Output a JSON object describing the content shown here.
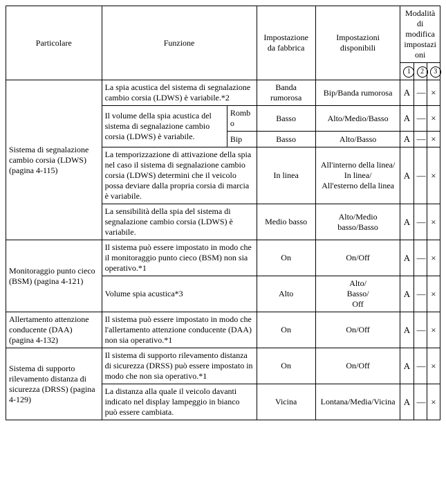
{
  "header": {
    "particolare": "Particolare",
    "funzione": "Funzione",
    "fabbrica": "Impostazione da fabbrica",
    "disponibili": "Impostazioni disponibili",
    "modalita": "Modalità di modifica impostazioni",
    "mod1": "1",
    "mod2": "2",
    "mod3": "3"
  },
  "groups": [
    {
      "label": "Sistema di segnalazione cambio corsia (LDWS) (pagina 4-115)",
      "rows": [
        {
          "func": "La spia acustica del sistema di segnalazione cambio corsia (LDWS) è variabile.*2",
          "sub": null,
          "fab": "Banda rumorosa",
          "disp": "Bip/Banda rumorosa",
          "m1": "A",
          "m2": "—",
          "m3": "×",
          "funcSpan": 1,
          "subMerged": true
        },
        {
          "func": "Il volume della spia acustica del sistema di segnalazione cambio corsia (LDWS) è variabile.",
          "sub": "Rombo",
          "fab": "Basso",
          "disp": "Alto/Medio/Basso",
          "m1": "A",
          "m2": "—",
          "m3": "×",
          "funcSpan": 2,
          "subMerged": false
        },
        {
          "func": null,
          "sub": "Bip",
          "fab": "Basso",
          "disp": "Alto/Basso",
          "m1": "A",
          "m2": "—",
          "m3": "×",
          "funcSpan": 0,
          "subMerged": false
        },
        {
          "func": "La temporizzazione di attivazione della spia nel caso il sistema di segnalazione cambio corsia (LDWS) determini che il veicolo possa deviare dalla propria corsia di marcia è variabile.",
          "sub": null,
          "fab": "In linea",
          "disp": "All'interno della linea/\nIn linea/\nAll'esterno della linea",
          "m1": "A",
          "m2": "—",
          "m3": "×",
          "funcSpan": 1,
          "subMerged": true
        },
        {
          "func": "La sensibilità della spia del sistema di segnalazione cambio corsia (LDWS) è variabile.",
          "sub": null,
          "fab": "Medio basso",
          "disp": "Alto/Medio basso/Basso",
          "m1": "A",
          "m2": "—",
          "m3": "×",
          "funcSpan": 1,
          "subMerged": true
        }
      ]
    },
    {
      "label": "Monitoraggio punto cieco (BSM) (pagina 4-121)",
      "rows": [
        {
          "func": "Il sistema può essere impostato in modo che il monitoraggio punto cieco (BSM) non sia operativo.*1",
          "sub": null,
          "fab": "On",
          "disp": "On/Off",
          "m1": "A",
          "m2": "—",
          "m3": "×",
          "funcSpan": 1,
          "subMerged": true
        },
        {
          "func": "Volume spia acustica*3",
          "sub": null,
          "fab": "Alto",
          "disp": "Alto/\nBasso/\nOff",
          "m1": "A",
          "m2": "—",
          "m3": "×",
          "funcSpan": 1,
          "subMerged": true
        }
      ]
    },
    {
      "label": "Allertamento attenzione conducente (DAA) (pagina 4-132)",
      "rows": [
        {
          "func": "Il sistema può essere impostato in modo che l'allertamento attenzione conducente (DAA) non sia operativo.*1",
          "sub": null,
          "fab": "On",
          "disp": "On/Off",
          "m1": "A",
          "m2": "—",
          "m3": "×",
          "funcSpan": 1,
          "subMerged": true
        }
      ]
    },
    {
      "label": "Sistema di supporto rilevamento distanza di sicurezza (DRSS) (pagina 4-129)",
      "rows": [
        {
          "func": "Il sistema di supporto rilevamento distanza di sicurezza (DRSS) può essere impostato in modo che non sia operativo.*1",
          "sub": null,
          "fab": "On",
          "disp": "On/Off",
          "m1": "A",
          "m2": "—",
          "m3": "×",
          "funcSpan": 1,
          "subMerged": true
        },
        {
          "func": "La distanza alla quale il veicolo davanti indicato nel display lampeggio in bianco può essere cambiata.",
          "sub": null,
          "fab": "Vicina",
          "disp": "Lontana/Media/Vicina",
          "m1": "A",
          "m2": "—",
          "m3": "×",
          "funcSpan": 1,
          "subMerged": true
        }
      ]
    }
  ]
}
